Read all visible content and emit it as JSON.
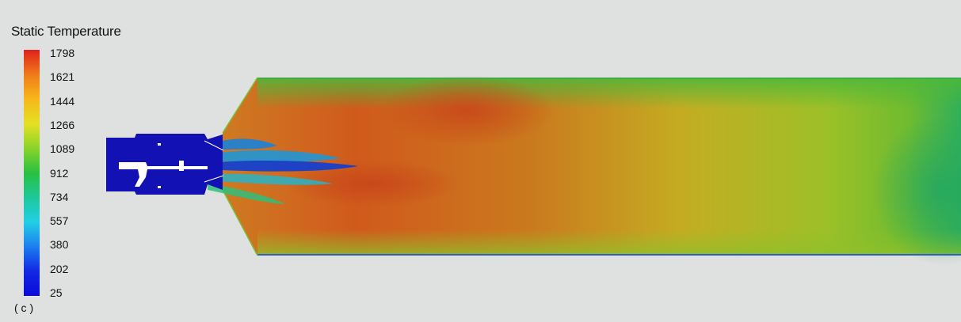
{
  "legend": {
    "title": "Static Temperature",
    "ticks": [
      "1798",
      "1621",
      "1444",
      "1266",
      "1089",
      "912",
      "734",
      "557",
      "380",
      "202",
      "25"
    ],
    "colormap": [
      "#e0201b",
      "#f07a1a",
      "#f6b81a",
      "#e4e024",
      "#8ad42a",
      "#28c040",
      "#1ec89a",
      "#22cfe4",
      "#1c7ef0",
      "#1228e4",
      "#0a0ad8"
    ]
  },
  "panel_label": "( c )",
  "colors": {
    "background": "#dfe0e0",
    "solid_blue": "#1212b4",
    "hot": "#d2561e",
    "warm": "#c9a420",
    "cool": "#36b252"
  }
}
